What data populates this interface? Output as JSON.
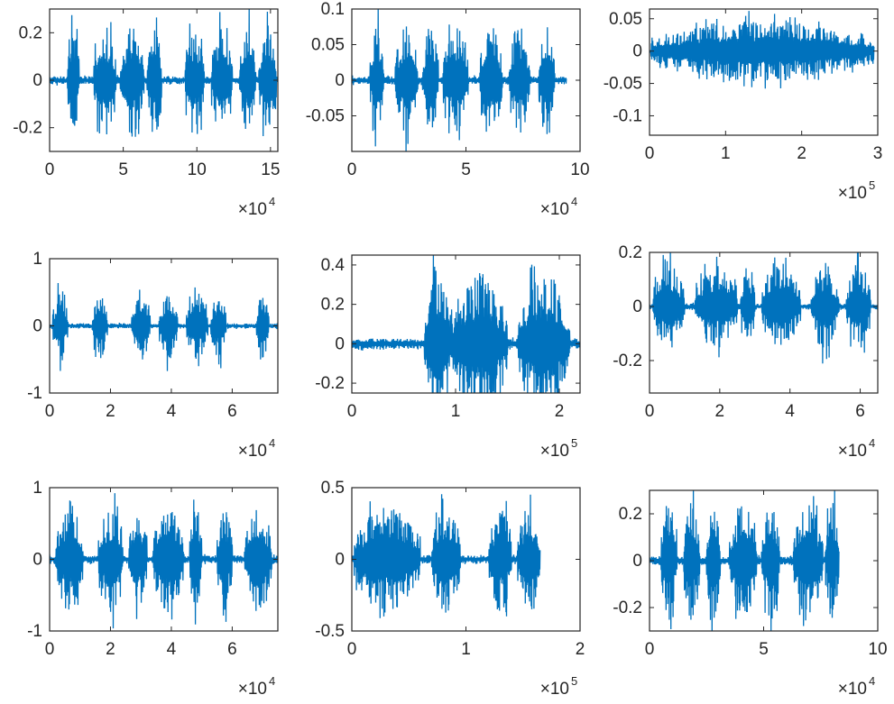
{
  "colors": {
    "series": "#0072bd",
    "axes": "#262626",
    "background": "#ffffff"
  },
  "chart_data": [
    {
      "type": "line",
      "xlim": [
        0,
        15.5
      ],
      "ylim": [
        -0.3,
        0.3
      ],
      "xticks": [
        0,
        5,
        10,
        15
      ],
      "xtick_labels": [
        "0",
        "5",
        "10",
        "15"
      ],
      "yticks": [
        0.2,
        0,
        -0.2
      ],
      "ytick_labels": [
        "0.2",
        "0",
        "-0.2"
      ],
      "x_exponent": "4",
      "data_end": 15.5,
      "peak": 0.28,
      "bursts": [
        [
          1.2,
          2.0
        ],
        [
          3.0,
          4.5
        ],
        [
          4.8,
          6.4
        ],
        [
          6.6,
          7.6
        ],
        [
          9.2,
          10.5
        ],
        [
          11.0,
          12.4
        ],
        [
          12.9,
          14.0
        ],
        [
          14.2,
          15.4
        ]
      ]
    },
    {
      "type": "line",
      "xlim": [
        0,
        10
      ],
      "ylim": [
        -0.1,
        0.1
      ],
      "xticks": [
        0,
        5,
        10
      ],
      "xtick_labels": [
        "0",
        "5",
        "10"
      ],
      "yticks": [
        0.1,
        0.05,
        0,
        -0.05
      ],
      "ytick_labels": [
        "0.1",
        "0.05",
        "0",
        "-0.05"
      ],
      "x_exponent": "4",
      "data_end": 9.4,
      "peak": 0.09,
      "bursts": [
        [
          0.8,
          1.4
        ],
        [
          1.9,
          2.9
        ],
        [
          3.1,
          3.8
        ],
        [
          4.0,
          5.1
        ],
        [
          5.6,
          6.6
        ],
        [
          6.9,
          7.8
        ],
        [
          8.2,
          8.9
        ]
      ]
    },
    {
      "type": "line",
      "xlim": [
        0,
        3
      ],
      "ylim": [
        -0.13,
        0.065
      ],
      "xticks": [
        0,
        1,
        2,
        3
      ],
      "xtick_labels": [
        "0",
        "1",
        "2",
        "3"
      ],
      "yticks": [
        0.05,
        0,
        -0.05,
        -0.1
      ],
      "ytick_labels": [
        "0.05",
        "0",
        "-0.05",
        "-0.1"
      ],
      "x_exponent": "5",
      "data_end": 2.95,
      "peak": 0.055,
      "bursts": [
        [
          0.02,
          2.95
        ]
      ]
    },
    {
      "type": "line",
      "xlim": [
        0,
        7.5
      ],
      "ylim": [
        -1,
        1
      ],
      "xticks": [
        0,
        2,
        4,
        6
      ],
      "xtick_labels": [
        "0",
        "2",
        "4",
        "6"
      ],
      "yticks": [
        1,
        0,
        -1
      ],
      "ytick_labels": [
        "1",
        "0",
        "-1"
      ],
      "x_exponent": "4",
      "data_end": 7.5,
      "peak": 0.6,
      "bursts": [
        [
          0.1,
          0.6
        ],
        [
          1.4,
          1.9
        ],
        [
          2.7,
          3.3
        ],
        [
          3.6,
          4.2
        ],
        [
          4.5,
          5.2
        ],
        [
          5.3,
          5.8
        ],
        [
          6.8,
          7.2
        ]
      ]
    },
    {
      "type": "line",
      "xlim": [
        0,
        2.2
      ],
      "ylim": [
        -0.25,
        0.45
      ],
      "xticks": [
        0,
        1,
        2
      ],
      "xtick_labels": [
        "0",
        "1",
        "2"
      ],
      "yticks": [
        0.4,
        0.2,
        0,
        -0.2
      ],
      "ytick_labels": [
        "0.4",
        "0.2",
        "0",
        "-0.2"
      ],
      "x_exponent": "5",
      "data_end": 2.2,
      "peak": 0.43,
      "bursts": [
        [
          0.7,
          0.95
        ],
        [
          0.95,
          1.5
        ],
        [
          1.6,
          2.1
        ]
      ]
    },
    {
      "type": "line",
      "xlim": [
        0,
        6.5
      ],
      "ylim": [
        -0.32,
        0.2
      ],
      "xticks": [
        0,
        2,
        4,
        6
      ],
      "xtick_labels": [
        "0",
        "2",
        "4",
        "6"
      ],
      "yticks": [
        0.2,
        0,
        -0.2
      ],
      "ytick_labels": [
        "0.2",
        "0",
        "-0.2"
      ],
      "x_exponent": "4",
      "data_end": 6.5,
      "peak": 0.19,
      "bursts": [
        [
          0.1,
          1.0
        ],
        [
          1.3,
          2.5
        ],
        [
          2.6,
          3.0
        ],
        [
          3.2,
          4.3
        ],
        [
          4.6,
          5.4
        ],
        [
          5.6,
          6.3
        ]
      ]
    },
    {
      "type": "line",
      "xlim": [
        0,
        7.5
      ],
      "ylim": [
        -1,
        1
      ],
      "xticks": [
        0,
        2,
        4,
        6
      ],
      "xtick_labels": [
        "0",
        "2",
        "4",
        "6"
      ],
      "yticks": [
        1,
        0,
        -1
      ],
      "ytick_labels": [
        "1",
        "0",
        "-1"
      ],
      "x_exponent": "4",
      "data_end": 7.5,
      "peak": 0.9,
      "bursts": [
        [
          0.2,
          1.1
        ],
        [
          1.6,
          2.4
        ],
        [
          2.6,
          3.2
        ],
        [
          3.4,
          4.4
        ],
        [
          4.6,
          5.0
        ],
        [
          5.5,
          6.0
        ],
        [
          6.4,
          7.3
        ]
      ]
    },
    {
      "type": "line",
      "xlim": [
        0,
        2
      ],
      "ylim": [
        -0.5,
        0.5
      ],
      "xticks": [
        0,
        1,
        2
      ],
      "xtick_labels": [
        "0",
        "1",
        "2"
      ],
      "yticks": [
        0.5,
        0,
        -0.5
      ],
      "ytick_labels": [
        "0.5",
        "0",
        "-0.5"
      ],
      "x_exponent": "5",
      "data_end": 1.65,
      "peak": 0.45,
      "bursts": [
        [
          0.02,
          0.6
        ],
        [
          0.7,
          0.95
        ],
        [
          1.2,
          1.4
        ],
        [
          1.45,
          1.65
        ]
      ]
    },
    {
      "type": "line",
      "xlim": [
        0,
        10
      ],
      "ylim": [
        -0.3,
        0.3
      ],
      "xticks": [
        0,
        5,
        10
      ],
      "xtick_labels": [
        "0",
        "5",
        "10"
      ],
      "yticks": [
        0.2,
        0,
        -0.2
      ],
      "ytick_labels": [
        "0.2",
        "0",
        "-0.2"
      ],
      "x_exponent": "4",
      "data_end": 8.3,
      "peak": 0.3,
      "bursts": [
        [
          0.5,
          1.2
        ],
        [
          1.5,
          2.2
        ],
        [
          2.5,
          3.1
        ],
        [
          3.5,
          4.7
        ],
        [
          4.9,
          5.7
        ],
        [
          6.3,
          7.6
        ],
        [
          7.7,
          8.3
        ]
      ]
    }
  ]
}
